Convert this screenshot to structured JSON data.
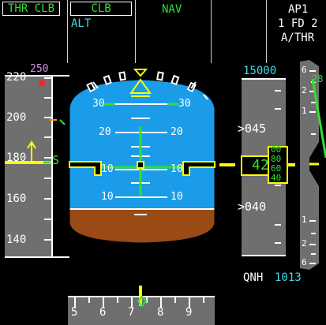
{
  "fma": {
    "col1_mode": "THR CLB",
    "col2_mode": "CLB",
    "col2_armed": "ALT",
    "col3_mode": "NAV",
    "col5": {
      "ap": "AP1",
      "fd": "1 FD 2",
      "athr": "A/THR"
    }
  },
  "speed_tape": {
    "target_speed": "250",
    "ticks": [
      "220",
      "200",
      "180",
      "160",
      "140"
    ],
    "trend_symbol": "S"
  },
  "attitude": {
    "pitch_labels_left": [
      "30",
      "20",
      "10",
      "10"
    ],
    "pitch_labels_right": [
      "30",
      "20",
      "10",
      "10"
    ]
  },
  "altitude_tape": {
    "selected_altitude": "15000",
    "ticks": [
      ">045",
      ">040"
    ],
    "current_altitude": "42",
    "drum_digits": [
      "00",
      "80",
      "60",
      "40"
    ]
  },
  "vertical_speed": {
    "value": "28",
    "scale_top": [
      "6",
      "2",
      "1"
    ],
    "scale_bottom": [
      "1",
      "2",
      "6"
    ]
  },
  "baro": {
    "label": "QNH",
    "value": "1013"
  },
  "heading": {
    "ticks": [
      "5",
      "6",
      "7",
      "8",
      "9"
    ]
  },
  "colors": {
    "sky": "#1b9ce8",
    "ground": "#9a4a14",
    "tape": "#6f6f6f",
    "green": "#2fe02f",
    "cyan": "#3fd9e8",
    "yellow": "#ffff00",
    "magenta": "#d88ee6",
    "amber": "#ff9900"
  }
}
